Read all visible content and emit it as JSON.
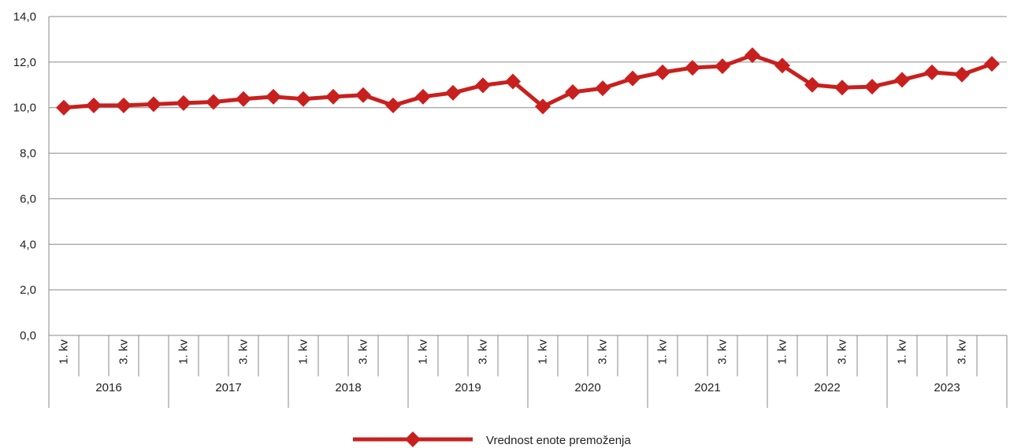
{
  "chart_data": {
    "type": "line",
    "title": "",
    "xlabel": "",
    "ylabel": "",
    "ylim": [
      0,
      14
    ],
    "y_ticks": [
      "0,0",
      "2,0",
      "4,0",
      "6,0",
      "8,0",
      "10,0",
      "12,0",
      "14,0"
    ],
    "grid": true,
    "legend_position": "bottom-center",
    "color": "#c8201e",
    "quarter_labels": [
      "1. kv",
      "",
      "3. kv",
      ""
    ],
    "years": [
      "2016",
      "2017",
      "2018",
      "2019",
      "2020",
      "2021",
      "2022",
      "2023"
    ],
    "series": [
      {
        "name": "Vrednost enote premoženja",
        "values": [
          10.0,
          10.1,
          10.1,
          10.15,
          10.2,
          10.25,
          10.38,
          10.48,
          10.38,
          10.48,
          10.55,
          10.1,
          10.48,
          10.65,
          10.98,
          11.15,
          10.05,
          10.68,
          10.85,
          11.28,
          11.55,
          11.75,
          11.82,
          12.3,
          11.85,
          11.0,
          10.88,
          10.92,
          11.22,
          11.55,
          11.45,
          11.92
        ]
      }
    ]
  }
}
